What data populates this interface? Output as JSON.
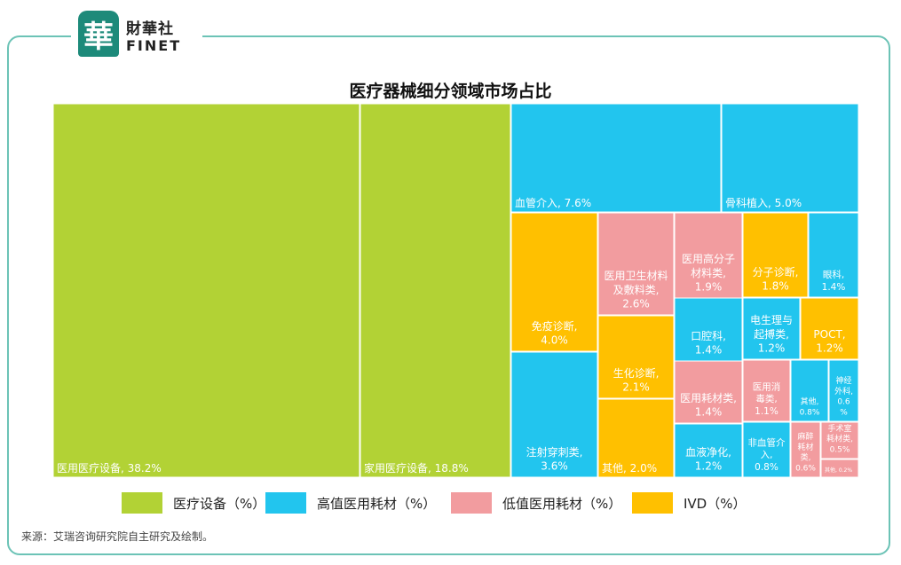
{
  "brand": {
    "logo_char": "華",
    "name_cn": "財華社",
    "name_en": "FINET"
  },
  "title": "医疗器械细分领域市场占比",
  "chart_data": {
    "type": "treemap",
    "title": "医疗器械细分领域市场占比",
    "unit": "%",
    "categories": [
      {
        "key": "equipment",
        "name": "医疗设备（%）",
        "color": "#b2d235"
      },
      {
        "key": "high",
        "name": "高值医用耗材（%）",
        "color": "#22c5ee"
      },
      {
        "key": "low",
        "name": "低值医用耗材（%）",
        "color": "#f29c9f"
      },
      {
        "key": "ivd",
        "name": "IVD（%）",
        "color": "#ffc000"
      }
    ],
    "items": [
      {
        "label": "医用医疗设备, 38.2%",
        "category": "equipment",
        "value": 38.2
      },
      {
        "label": "家用医疗设备, 18.8%",
        "category": "equipment",
        "value": 18.8
      },
      {
        "label": "血管介入, 7.6%",
        "category": "high",
        "value": 7.6
      },
      {
        "label": "骨科植入, 5.0%",
        "category": "high",
        "value": 5.0
      },
      {
        "label": "免疫诊断,\n4.0%",
        "category": "ivd",
        "value": 4.0
      },
      {
        "label": "注射穿刺类,\n3.6%",
        "category": "high",
        "value": 3.6
      },
      {
        "label": "医用卫生材料\n及敷料类,\n2.6%",
        "category": "low",
        "value": 2.6
      },
      {
        "label": "生化诊断,\n2.1%",
        "category": "ivd",
        "value": 2.1
      },
      {
        "label": "其他, 2.0%",
        "category": "ivd",
        "value": 2.0
      },
      {
        "label": "医用高分子\n材料类,\n1.9%",
        "category": "low",
        "value": 1.9
      },
      {
        "label": "分子诊断,\n1.8%",
        "category": "ivd",
        "value": 1.8
      },
      {
        "label": "眼科,\n1.4%",
        "category": "high",
        "value": 1.4
      },
      {
        "label": "口腔科,\n1.4%",
        "category": "high",
        "value": 1.4
      },
      {
        "label": "医用耗材类,\n1.4%",
        "category": "low",
        "value": 1.4
      },
      {
        "label": "电生理与\n起搏类,\n1.2%",
        "category": "high",
        "value": 1.2
      },
      {
        "label": "POCT,\n1.2%",
        "category": "ivd",
        "value": 1.2
      },
      {
        "label": "血液净化,\n1.2%",
        "category": "high",
        "value": 1.2
      },
      {
        "label": "医用消\n毒类,\n1.1%",
        "category": "low",
        "value": 1.1
      },
      {
        "label": "其他,\n0.8%",
        "category": "high",
        "value": 0.8
      },
      {
        "label": "神经\n外科,\n0.6\n%",
        "category": "high",
        "value": 0.6
      },
      {
        "label": "非血管介\n入,\n0.8%",
        "category": "high",
        "value": 0.8
      },
      {
        "label": "麻醉\n耗材\n类,\n0.6%",
        "category": "low",
        "value": 0.6
      },
      {
        "label": "手术室\n耗材类,\n0.5%",
        "category": "low",
        "value": 0.5
      },
      {
        "label": "其他, 0.2%",
        "category": "low",
        "value": 0.2
      }
    ]
  },
  "source": "来源：艾瑞咨询研究院自主研究及绘制。"
}
